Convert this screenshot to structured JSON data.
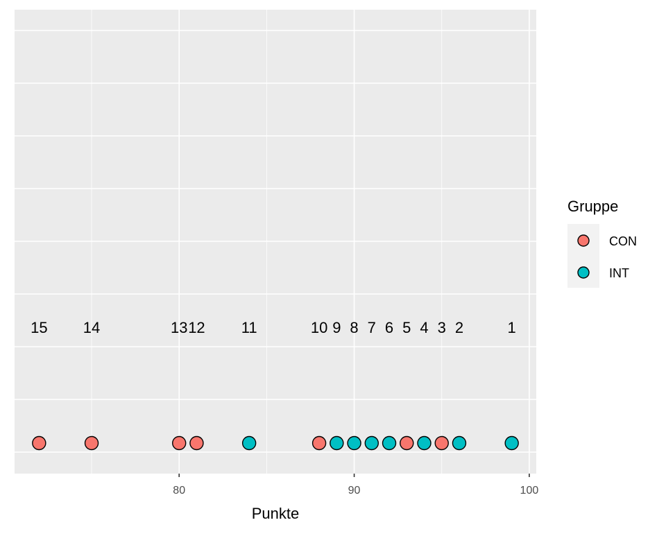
{
  "chart_data": {
    "type": "scatter",
    "xlabel": "Punkte",
    "ylabel": "",
    "xlim": [
      70.6,
      100.4
    ],
    "x_ticks": [
      80,
      90,
      100
    ],
    "x_tick_labels": [
      "80",
      "90",
      "100"
    ],
    "grid": true,
    "legend": {
      "title": "Gruppe",
      "placement": "right",
      "entries": [
        {
          "label": "CON",
          "color": "#F8766D"
        },
        {
          "label": "INT",
          "color": "#00BFC4"
        }
      ]
    },
    "series": [
      {
        "name": "CON",
        "color": "#F8766D",
        "x": [
          72,
          75,
          80,
          81,
          88,
          93,
          95
        ],
        "labels": [
          "15",
          "14",
          "13",
          "12",
          "10",
          "5",
          "3"
        ]
      },
      {
        "name": "INT",
        "color": "#00BFC4",
        "x": [
          84,
          89,
          90,
          91,
          92,
          94,
          96,
          99
        ],
        "labels": [
          "11",
          "9",
          "8",
          "7",
          "6",
          "4",
          "2",
          "1"
        ]
      }
    ]
  }
}
